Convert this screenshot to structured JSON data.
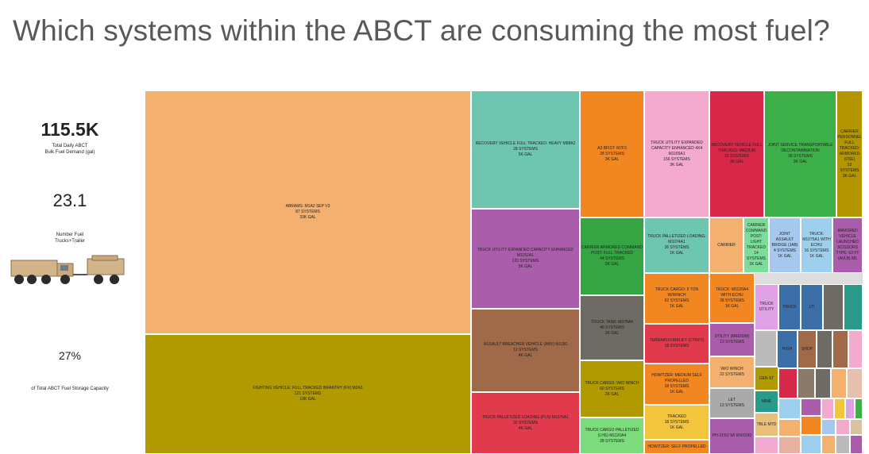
{
  "title": "Which systems within the ABCT are consuming the most fuel?",
  "kpis": {
    "demand_value": "115.5K",
    "demand_label": "Total Daily ABCT\nBulk Fuel Demand (gal)",
    "trucks_value": "23.1",
    "trucks_label": "Number Fuel\nTrucks+Trailer",
    "capacity_value": "27%",
    "capacity_label": "of Total ABCT Fuel Storage Capacity"
  },
  "chart_data": {
    "type": "treemap",
    "cells": [
      {
        "label": "ABRAMS: M1A2 SEP V3",
        "systems": "87 systems",
        "gal": "33K gal",
        "color": "#f4b06e"
      },
      {
        "label": "FIGHTING VEHICLE: FULL TRACKED INFANTRY (FV) M2A3",
        "systems": "121 systems",
        "gal": "19K gal",
        "color": "#b09a00"
      },
      {
        "label": "RECOVERY VEHICLE FULL TRACKED: HEAVY M88A2",
        "systems": "28 systems",
        "gal": "5K gal",
        "color": "#6fc6b0"
      },
      {
        "label": "TRUCK UTILITY EXPANDED CAPACITY ENHANCED M1152A1",
        "systems": "220 systems",
        "gal": "5K gal",
        "color": "#aa5daa"
      },
      {
        "label": "ASSAULT BREACHER VEHICLE (ABV) M1150",
        "systems": "12 systems",
        "gal": "4K gal",
        "color": "#a0694a"
      },
      {
        "label": "TRUCK PALLETIZED LOADING (PLS) M1075A1",
        "systems": "32 systems",
        "gal": "4K gal",
        "color": "#e03a4c"
      },
      {
        "label": "A3 BFIST: M7F3",
        "systems": "28 systems",
        "gal": "3K gal",
        "color": "#f28722"
      },
      {
        "label": "TRUCK UTILITY EXPANDED CAPACITY ENHANCED 4X4 M1165A1",
        "systems": "156 systems",
        "gal": "3K gal",
        "color": "#f4a9cf"
      },
      {
        "label": "RECOVERY VEHICLE FULL TRACKED: MEDIUM",
        "systems": "16 systems",
        "gal": "3K gal",
        "color": "#d7284a"
      },
      {
        "label": "JOINT SERVICE TRANSPORTABLE DECONTAMINATION",
        "systems": "38 systems",
        "gal": "3K gal",
        "color": "#3eb04a"
      },
      {
        "label": "CARRIER PERSONNEL FULL TRACKED: ARMORED (DSE)",
        "systems": "53 systems",
        "gal": "3K gal",
        "color": "#b39500"
      },
      {
        "label": "CARRIER ARMORED COMMAND POST: FULL TRACKED",
        "systems": "44 systems",
        "gal": "2K gal",
        "color": "#35a544"
      },
      {
        "label": "TRUCK TANK: M978A4",
        "systems": "48 systems",
        "gal": "2K gal",
        "color": "#6e6a64"
      },
      {
        "label": "TRUCK CARGO: W/O WINCH",
        "systems": "60 systems",
        "gal": "2K gal",
        "color": "#b09a00"
      },
      {
        "label": "TRUCK CARGO PALLETIZED (LHS) M1120A4",
        "systems": "28 systems",
        "gal": "",
        "color": "#7cdc7c"
      },
      {
        "label": "TRUCK PALLETIZED LOADING: M1074A1",
        "systems": "36 systems",
        "gal": "1K gal",
        "color": "#6fc6b0"
      },
      {
        "label": "TRUCK CARGO: 5 TON W/WINCH",
        "systems": "62 systems",
        "gal": "1K gal",
        "color": "#f28722"
      },
      {
        "label": "TERRAIN FORKLIFT (CTRFT)",
        "systems": "18 systems",
        "gal": "",
        "color": "#e03a4c"
      },
      {
        "label": "HOWITZER: MEDIUM SELF PROPELLED",
        "systems": "18 systems",
        "gal": "1K gal",
        "color": "#f28722"
      },
      {
        "label": "TRACKED",
        "systems": "18 systems",
        "gal": "1K gal",
        "color": "#f2c53d"
      },
      {
        "label": "HOWITZER: SELF PROPELLED",
        "systems": "",
        "gal": "",
        "color": "#f28722"
      },
      {
        "label": "CARRIER",
        "systems": "",
        "gal": "",
        "color": "#f4b06e"
      },
      {
        "label": "CARRIER COMMAND POST: LIGHT TRACKED",
        "systems": "14 systems",
        "gal": "1K gal",
        "color": "#7cdc9a"
      },
      {
        "label": "JOINT ASSAULT BRIDGE (JAB)",
        "systems": "4 systems",
        "gal": "1K gal",
        "color": "#a6c8ee"
      },
      {
        "label": "TRUCK: M1075A1 WITH ECHU",
        "systems": "16 systems",
        "gal": "1K gal",
        "color": "#9ed0ee"
      },
      {
        "label": "ARMORED VEHICLE LAUNCHED SCISSORS TYPE: 63 FT (AVLB) M1",
        "systems": "",
        "gal": "",
        "color": "#aa5daa"
      },
      {
        "label": "TRUCK: M1120A4 WITH ECHU",
        "systems": "28 systems",
        "gal": "1K gal",
        "color": "#f28722"
      },
      {
        "label": "UTILITY (MEDIUM)",
        "systems": "13 systems",
        "gal": "",
        "color": "#aa5daa"
      },
      {
        "label": "W/O WINCH",
        "systems": "22 systems",
        "gal": "",
        "color": "#f4b06e"
      },
      {
        "label": "LET",
        "systems": "13 systems",
        "gal": "",
        "color": "#aaaaaa"
      },
      {
        "label": "PH-215/2 W/ KN/1030",
        "systems": "",
        "gal": "",
        "color": "#aa5daa"
      },
      {
        "label": "TRUCK UTILITY",
        "systems": "",
        "gal": "",
        "color": "#e1a1e6"
      },
      {
        "label": "TRUCK",
        "systems": "",
        "gal": "",
        "color": "#3c6ea8"
      },
      {
        "label": "LTI",
        "systems": "",
        "gal": "",
        "color": "#3c6ea8"
      },
      {
        "label": "HIGH",
        "systems": "",
        "gal": "",
        "color": "#3c6ea8"
      },
      {
        "label": "SHOP",
        "systems": "",
        "gal": "",
        "color": "#a0694a"
      },
      {
        "label": "GEN ST",
        "systems": "",
        "gal": "",
        "color": "#b09a00"
      },
      {
        "label": "MINE",
        "systems": "",
        "gal": "",
        "color": "#2a9a8a"
      },
      {
        "label": "TBLE MTD",
        "systems": "",
        "gal": "",
        "color": "#e8c07a"
      }
    ]
  }
}
